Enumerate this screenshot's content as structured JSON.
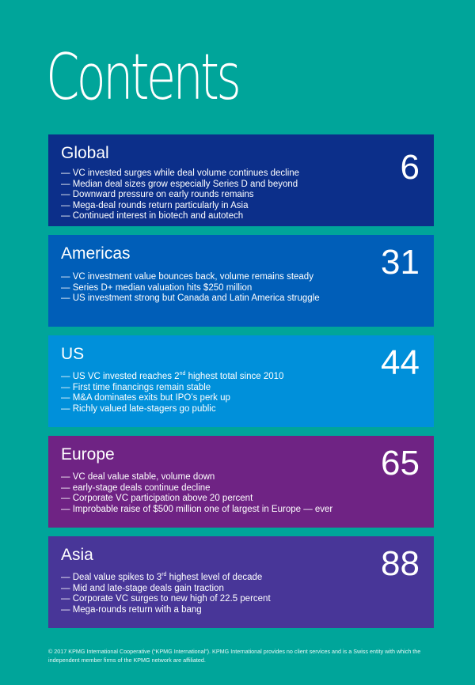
{
  "title": "Contents",
  "colors": {
    "background": "#00a59a",
    "global": "#0c2f8a",
    "americas": "#005eb8",
    "us": "#0090da",
    "europe": "#6f2384",
    "asia": "#483698"
  },
  "sections": [
    {
      "title": "Global",
      "page": "6",
      "bullets": [
        "— VC invested surges while deal volume continues decline",
        "— Median deal sizes grow especially Series D and beyond",
        "— Downward pressure on early rounds remains",
        "— Mega-deal rounds return particularly in Asia",
        "— Continued interest in biotech and autotech"
      ]
    },
    {
      "title": "Americas",
      "page": "31",
      "bullets": [
        "— VC investment value bounces back, volume remains steady",
        "— Series D+ median valuation hits $250 million",
        "— US investment strong but Canada and Latin America struggle"
      ]
    },
    {
      "title": "US",
      "page": "44",
      "bullet_0_pre": "— US VC invested reaches 2",
      "bullet_0_sup": "nd",
      "bullet_0_post": " highest total since 2010",
      "bullets": [
        "— First time financings remain stable",
        "— M&A dominates exits but IPO’s perk up",
        "— Richly valued late-stagers go public"
      ]
    },
    {
      "title": "Europe",
      "page": "65",
      "bullets": [
        "— VC deal value stable, volume down",
        "— early-stage deals continue decline",
        "— Corporate VC participation above 20 percent",
        "— Improbable raise of $500 million one of largest in Europe — ever"
      ]
    },
    {
      "title": "Asia",
      "page": "88",
      "bullet_0_pre": "— Deal value spikes to 3",
      "bullet_0_sup": "rd",
      "bullet_0_post": " highest level of decade",
      "bullets": [
        "— Mid and late-stage deals gain traction",
        "— Corporate VC surges to new high of 22.5 percent",
        "— Mega-rounds return with a bang"
      ]
    }
  ],
  "footnote": "© 2017 KPMG International Cooperative (“KPMG International”). KPMG International provides no client services and is a Swiss entity with which the independent member firms of the KPMG network are affiliated."
}
